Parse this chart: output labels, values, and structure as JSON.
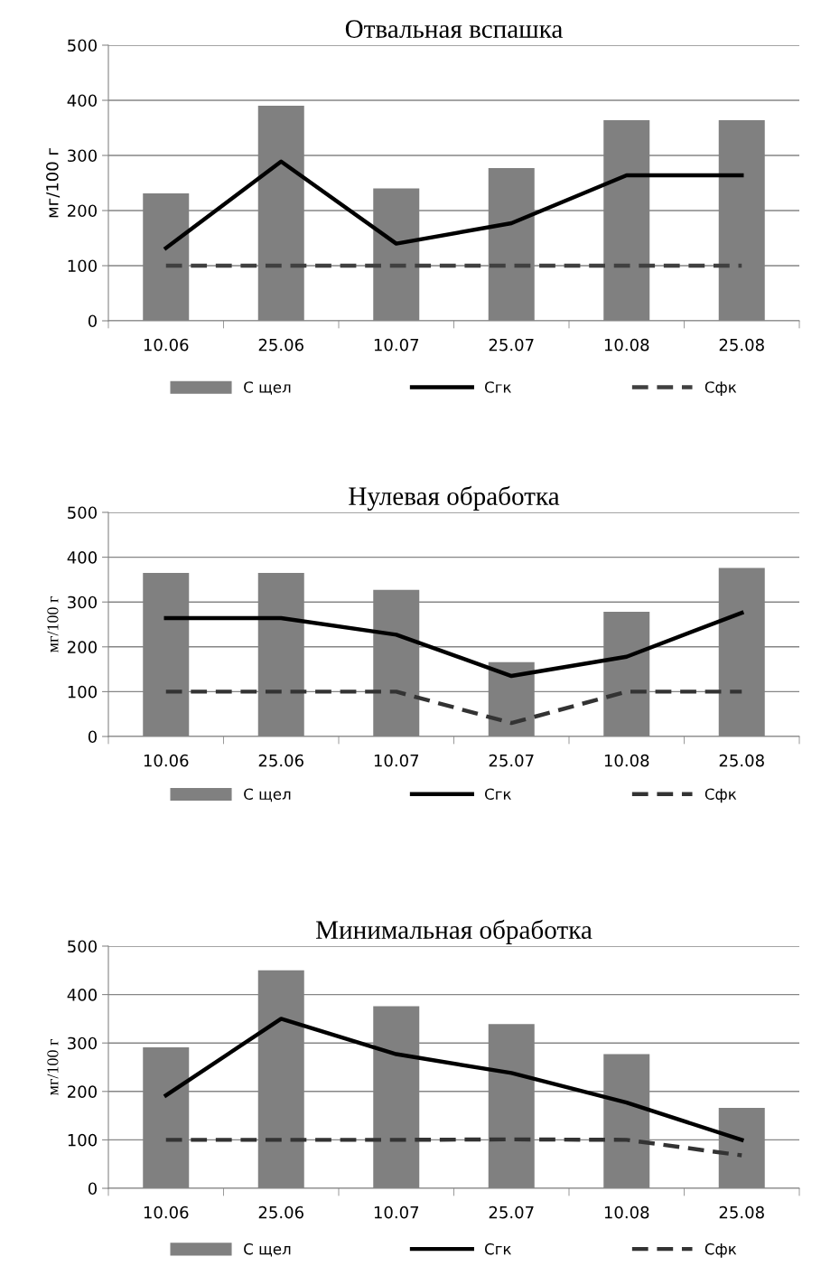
{
  "chart_data": [
    {
      "type": "bar",
      "title": "Отвальная вспашка",
      "ylabel": "мг/100 г",
      "categories": [
        "10.06",
        "25.06",
        "10.07",
        "25.07",
        "10.08",
        "25.08"
      ],
      "ylim": [
        0,
        500
      ],
      "yticks": [
        0,
        100,
        200,
        300,
        400,
        500
      ],
      "grid": "y",
      "legend": "bottom",
      "series": [
        {
          "name": "С щел",
          "color": "#808080",
          "values": [
            231,
            390,
            240,
            277,
            364,
            364
          ]
        },
        {
          "name": "Сгк",
          "type": "line",
          "color": "#000000",
          "line_style": "solid",
          "values": [
            132,
            289,
            140,
            177,
            264,
            264
          ]
        },
        {
          "name": "Сфк",
          "type": "line",
          "color": "#404040",
          "line_style": "dashed",
          "values": [
            100,
            100,
            100,
            100,
            100,
            100
          ]
        }
      ]
    },
    {
      "type": "bar",
      "title": "Нулевая обработка",
      "ylabel": "мг/100 г",
      "categories": [
        "10.06",
        "25.06",
        "10.07",
        "25.07",
        "10.08",
        "25.08"
      ],
      "ylim": [
        0,
        500
      ],
      "yticks": [
        0,
        100,
        200,
        300,
        400,
        500
      ],
      "grid": "y",
      "legend": "bottom",
      "series": [
        {
          "name": "С щел",
          "color": "#808080",
          "values": [
            365,
            365,
            327,
            166,
            278,
            376
          ]
        },
        {
          "name": "Сгк",
          "type": "line",
          "color": "#000000",
          "line_style": "solid",
          "values": [
            264,
            264,
            227,
            135,
            178,
            276
          ]
        },
        {
          "name": "Сфк",
          "type": "line",
          "color": "#333333",
          "line_style": "dashed",
          "values": [
            100,
            100,
            100,
            30,
            100,
            100
          ]
        }
      ]
    },
    {
      "type": "bar",
      "title": "Минимальная обработка",
      "ylabel": "мг/100 г",
      "categories": [
        "10.06",
        "25.06",
        "10.07",
        "25.07",
        "10.08",
        "25.08"
      ],
      "ylim": [
        0,
        500
      ],
      "yticks": [
        0,
        100,
        200,
        300,
        400,
        500
      ],
      "grid": "y",
      "legend": "bottom",
      "series": [
        {
          "name": "С щел",
          "color": "#808080",
          "values": [
            291,
            450,
            376,
            339,
            277,
            166
          ]
        },
        {
          "name": "Сгк",
          "type": "line",
          "color": "#000000",
          "line_style": "solid",
          "values": [
            192,
            350,
            277,
            238,
            177,
            100
          ]
        },
        {
          "name": "Сфк",
          "type": "line",
          "color": "#333333",
          "line_style": "dashed",
          "values": [
            100,
            100,
            100,
            101,
            100,
            68
          ]
        }
      ]
    }
  ]
}
